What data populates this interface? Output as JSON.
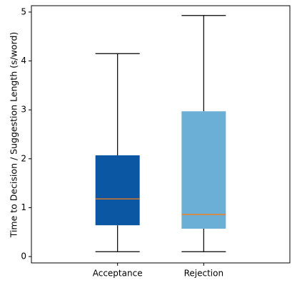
{
  "chart_data": {
    "type": "box",
    "title": "",
    "xlabel": "",
    "ylabel": "Time to Decision / Suggestion Length (s/word)",
    "ylim": [
      -0.13,
      5.13
    ],
    "yticks": [
      0,
      1,
      2,
      3,
      4,
      5
    ],
    "grid": false,
    "categories": [
      "Acceptance",
      "Rejection"
    ],
    "boxes": [
      {
        "category": "Acceptance",
        "whisker_low": 0.1,
        "q1": 0.64,
        "median": 1.18,
        "q3": 2.07,
        "whisker_high": 4.15,
        "color": "#0b57a4"
      },
      {
        "category": "Rejection",
        "whisker_low": 0.1,
        "q1": 0.57,
        "median": 0.86,
        "q3": 2.97,
        "whisker_high": 4.93,
        "color": "#6baed6"
      }
    ],
    "median_color": "#ff7f0e"
  }
}
